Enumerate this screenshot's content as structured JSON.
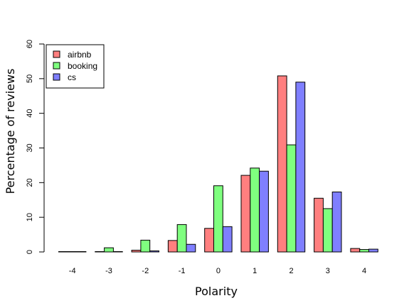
{
  "chart_data": {
    "type": "bar",
    "categories": [
      "-4",
      "-3",
      "-2",
      "-1",
      "0",
      "1",
      "2",
      "3",
      "4"
    ],
    "series": [
      {
        "name": "airbnb",
        "color": "#FF7F7F",
        "values": [
          0.1,
          0.1,
          0.5,
          3.3,
          6.8,
          22.1,
          50.8,
          15.5,
          1.0
        ]
      },
      {
        "name": "booking",
        "color": "#7FFF7F",
        "values": [
          0.1,
          1.2,
          3.4,
          7.9,
          19.1,
          24.2,
          30.9,
          12.5,
          0.7
        ]
      },
      {
        "name": "cs",
        "color": "#7F7FFF",
        "values": [
          0.1,
          0.1,
          0.3,
          2.2,
          7.3,
          23.3,
          49.0,
          17.3,
          0.8
        ]
      }
    ],
    "yticks": [
      "0",
      "10",
      "20",
      "30",
      "40",
      "50",
      "60"
    ],
    "xlabel": "Polarity",
    "ylabel": "Percentage of reviews",
    "ylim": [
      0,
      60
    ],
    "legend_position": "top-left",
    "grid": false
  }
}
